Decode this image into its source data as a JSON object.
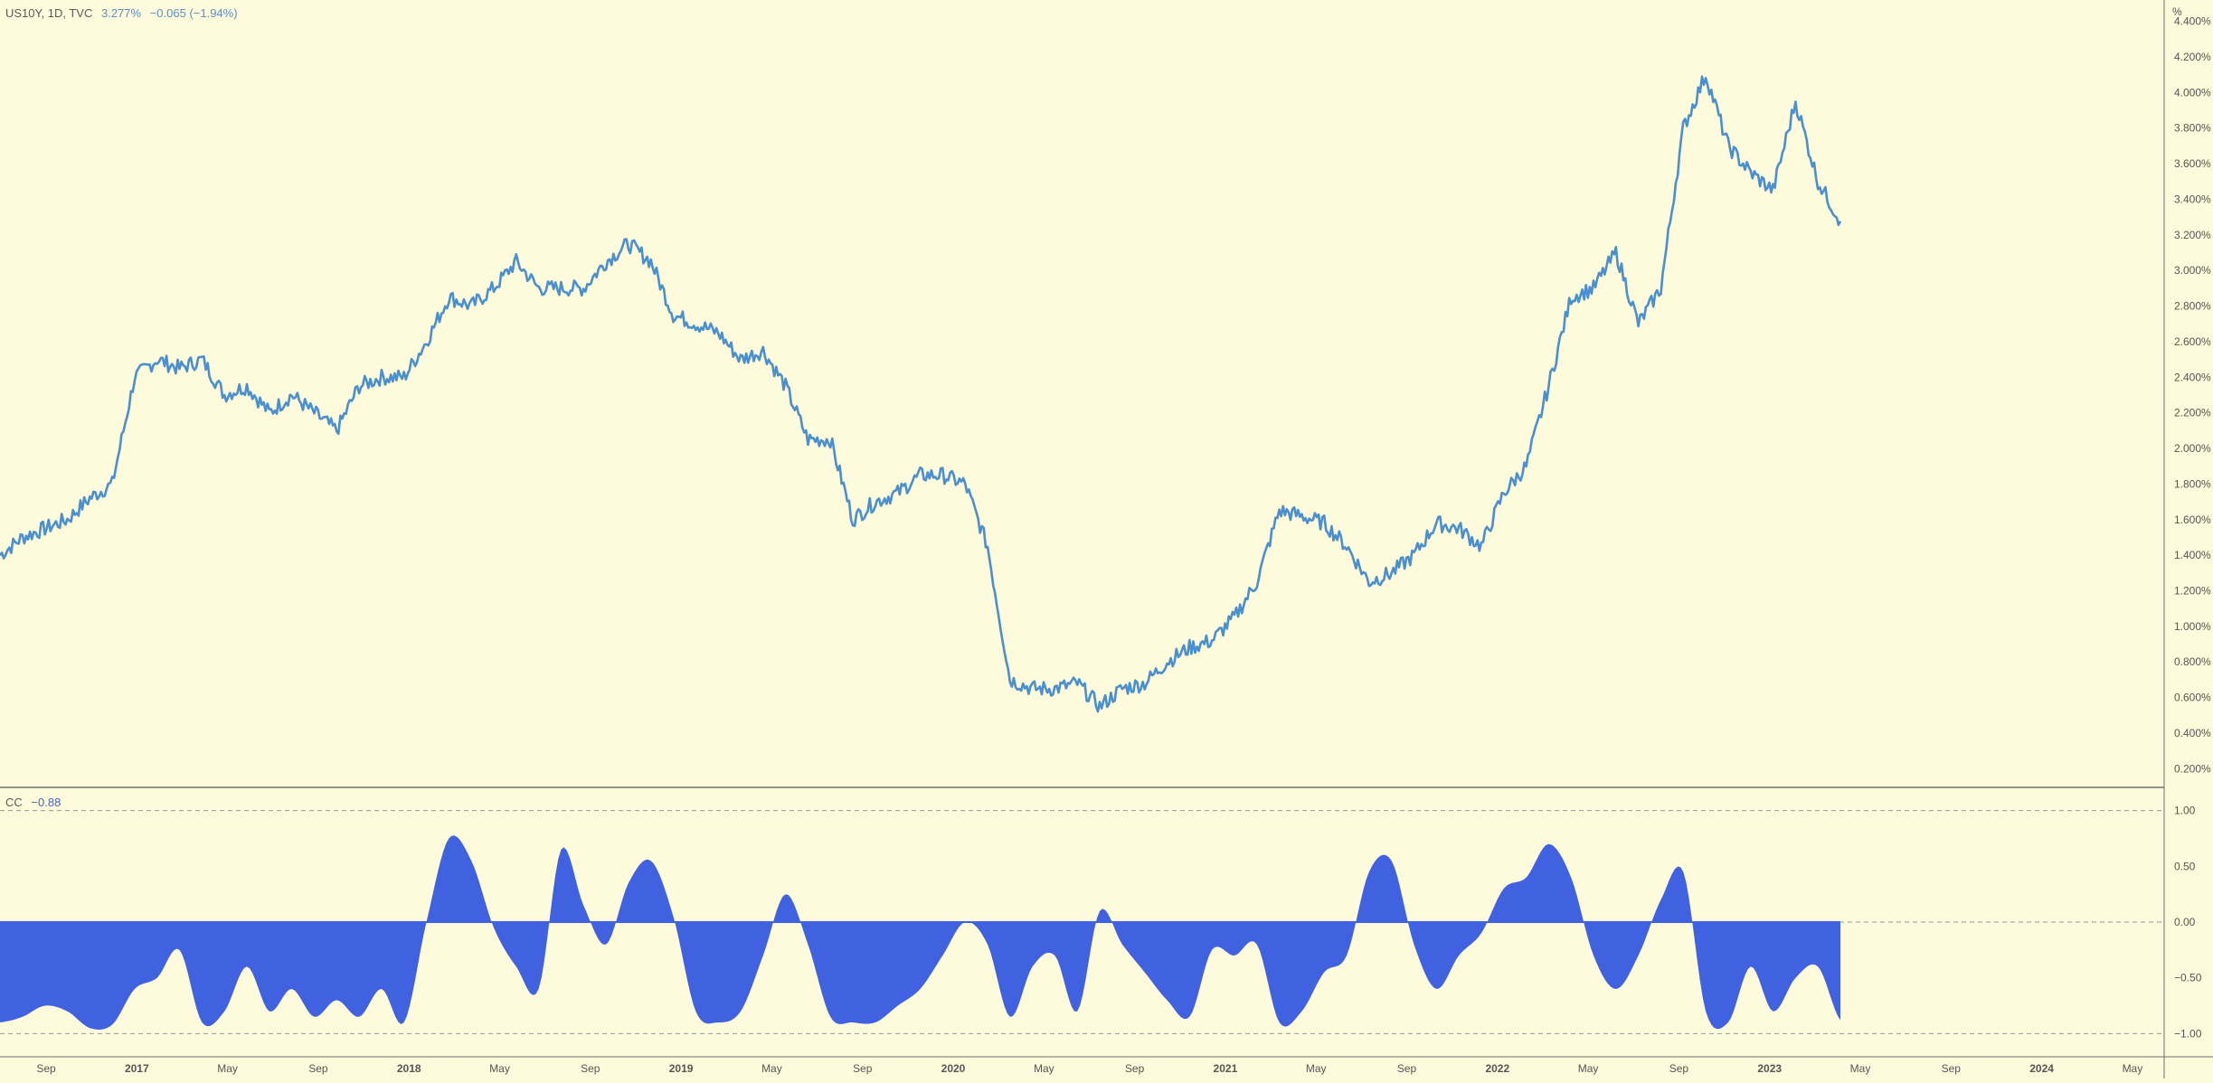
{
  "top_header": {
    "symbol": "US10Y, 1D, TVC",
    "last": "3.277%",
    "change": "−0.065 (−1.94%)"
  },
  "bottom_header": {
    "name": "CC",
    "value": "−0.88"
  },
  "unit_label": "%",
  "colors": {
    "background": "#fdfbdc",
    "price_line": "#4a8fd0",
    "cc_fill": "#4162e0",
    "axis": "#555555",
    "divider": "#6e6e6e",
    "dashed": "#9a9a9a"
  },
  "chart_data": [
    {
      "type": "line",
      "title": "US10Y, 1D, TVC",
      "series": [
        {
          "name": "US10Y"
        }
      ],
      "y_unit": "%",
      "ylim": [
        0.1,
        4.52
      ],
      "yticks": [
        "4.400%",
        "4.200%",
        "4.000%",
        "3.800%",
        "3.600%",
        "3.400%",
        "3.200%",
        "3.000%",
        "2.800%",
        "2.600%",
        "2.400%",
        "2.200%",
        "2.000%",
        "1.800%",
        "1.600%",
        "1.400%",
        "1.200%",
        "1.000%",
        "0.800%",
        "0.600%",
        "0.400%",
        "0.200%"
      ],
      "x": [
        "2016-06",
        "2016-07",
        "2016-08",
        "2016-09",
        "2016-10",
        "2016-11",
        "2016-12",
        "2017-01",
        "2017-02",
        "2017-03",
        "2017-04",
        "2017-05",
        "2017-06",
        "2017-07",
        "2017-08",
        "2017-09",
        "2017-10",
        "2017-11",
        "2017-12",
        "2018-01",
        "2018-02",
        "2018-03",
        "2018-04",
        "2018-05",
        "2018-06",
        "2018-07",
        "2018-08",
        "2018-09",
        "2018-10",
        "2018-11",
        "2018-12",
        "2019-01",
        "2019-02",
        "2019-03",
        "2019-04",
        "2019-05",
        "2019-06",
        "2019-07",
        "2019-08",
        "2019-09",
        "2019-10",
        "2019-11",
        "2019-12",
        "2020-01",
        "2020-02",
        "2020-03",
        "2020-04",
        "2020-05",
        "2020-06",
        "2020-07",
        "2020-08",
        "2020-09",
        "2020-10",
        "2020-11",
        "2020-12",
        "2021-01",
        "2021-02",
        "2021-03",
        "2021-04",
        "2021-05",
        "2021-06",
        "2021-07",
        "2021-08",
        "2021-09",
        "2021-10",
        "2021-11",
        "2021-12",
        "2022-01",
        "2022-02",
        "2022-03",
        "2022-04",
        "2022-05",
        "2022-06",
        "2022-07",
        "2022-08",
        "2022-09",
        "2022-10",
        "2022-11",
        "2022-12",
        "2023-01",
        "2023-02",
        "2023-03",
        "2023-04"
      ],
      "y": [
        1.4,
        1.5,
        1.55,
        1.6,
        1.72,
        1.8,
        2.4,
        2.5,
        2.45,
        2.5,
        2.3,
        2.35,
        2.2,
        2.3,
        2.2,
        2.1,
        2.35,
        2.4,
        2.4,
        2.6,
        2.85,
        2.8,
        2.9,
        3.05,
        2.9,
        2.9,
        2.9,
        3.05,
        3.15,
        3.05,
        2.75,
        2.7,
        2.65,
        2.5,
        2.55,
        2.35,
        2.05,
        2.05,
        1.6,
        1.7,
        1.75,
        1.85,
        1.85,
        1.8,
        1.45,
        0.7,
        0.65,
        0.65,
        0.68,
        0.55,
        0.65,
        0.68,
        0.8,
        0.88,
        0.92,
        1.05,
        1.25,
        1.65,
        1.62,
        1.58,
        1.45,
        1.25,
        1.3,
        1.4,
        1.58,
        1.55,
        1.45,
        1.75,
        1.9,
        2.35,
        2.85,
        2.9,
        3.1,
        2.7,
        2.9,
        3.8,
        4.1,
        3.7,
        3.55,
        3.45,
        3.95,
        3.5,
        3.277
      ]
    },
    {
      "type": "area",
      "title": "CC",
      "series": [
        {
          "name": "CC"
        }
      ],
      "ylim": [
        -1.2,
        1.2
      ],
      "yticks": [
        "1.00",
        "0.50",
        "0.00",
        "−0.50",
        "−1.00"
      ],
      "reference_lines": [
        1.0,
        0.0,
        -1.0
      ],
      "x": [
        "2016-06",
        "2016-07",
        "2016-08",
        "2016-09",
        "2016-10",
        "2016-11",
        "2016-12",
        "2017-01",
        "2017-02",
        "2017-03",
        "2017-04",
        "2017-05",
        "2017-06",
        "2017-07",
        "2017-08",
        "2017-09",
        "2017-10",
        "2017-11",
        "2017-12",
        "2018-01",
        "2018-02",
        "2018-03",
        "2018-04",
        "2018-05",
        "2018-06",
        "2018-07",
        "2018-08",
        "2018-09",
        "2018-10",
        "2018-11",
        "2018-12",
        "2019-01",
        "2019-02",
        "2019-03",
        "2019-04",
        "2019-05",
        "2019-06",
        "2019-07",
        "2019-08",
        "2019-09",
        "2019-10",
        "2019-11",
        "2019-12",
        "2020-01",
        "2020-02",
        "2020-03",
        "2020-04",
        "2020-05",
        "2020-06",
        "2020-07",
        "2020-08",
        "2020-09",
        "2020-10",
        "2020-11",
        "2020-12",
        "2021-01",
        "2021-02",
        "2021-03",
        "2021-04",
        "2021-05",
        "2021-06",
        "2021-07",
        "2021-08",
        "2021-09",
        "2021-10",
        "2021-11",
        "2021-12",
        "2022-01",
        "2022-02",
        "2022-03",
        "2022-04",
        "2022-05",
        "2022-06",
        "2022-07",
        "2022-08",
        "2022-09",
        "2022-10",
        "2022-11",
        "2022-12",
        "2023-01",
        "2023-02",
        "2023-03",
        "2023-04"
      ],
      "y": [
        -0.9,
        -0.85,
        -0.75,
        -0.8,
        -0.95,
        -0.92,
        -0.6,
        -0.5,
        -0.25,
        -0.9,
        -0.8,
        -0.4,
        -0.8,
        -0.6,
        -0.85,
        -0.7,
        -0.85,
        -0.6,
        -0.9,
        0.0,
        0.75,
        0.55,
        -0.05,
        -0.4,
        -0.6,
        0.65,
        0.15,
        -0.2,
        0.35,
        0.55,
        0.05,
        -0.8,
        -0.9,
        -0.8,
        -0.3,
        0.25,
        -0.2,
        -0.85,
        -0.9,
        -0.9,
        -0.75,
        -0.6,
        -0.3,
        0.0,
        -0.2,
        -0.85,
        -0.4,
        -0.3,
        -0.8,
        0.1,
        -0.2,
        -0.45,
        -0.7,
        -0.85,
        -0.25,
        -0.3,
        -0.2,
        -0.9,
        -0.8,
        -0.45,
        -0.3,
        0.45,
        0.55,
        -0.2,
        -0.6,
        -0.3,
        -0.1,
        0.3,
        0.4,
        0.7,
        0.4,
        -0.3,
        -0.6,
        -0.3,
        0.2,
        0.45,
        -0.8,
        -0.9,
        -0.4,
        -0.8,
        -0.5,
        -0.4,
        -0.88
      ]
    }
  ],
  "x_axis": {
    "labels": [
      "Sep",
      "2017",
      "May",
      "Sep",
      "2018",
      "May",
      "Sep",
      "2019",
      "May",
      "Sep",
      "2020",
      "May",
      "Sep",
      "2021",
      "May",
      "Sep",
      "2022",
      "May",
      "Sep",
      "2023",
      "May",
      "Sep",
      "2024",
      "May"
    ],
    "bold": [
      false,
      true,
      false,
      false,
      true,
      false,
      false,
      true,
      false,
      false,
      true,
      false,
      false,
      true,
      false,
      false,
      true,
      false,
      false,
      true,
      false,
      false,
      true,
      false
    ]
  }
}
